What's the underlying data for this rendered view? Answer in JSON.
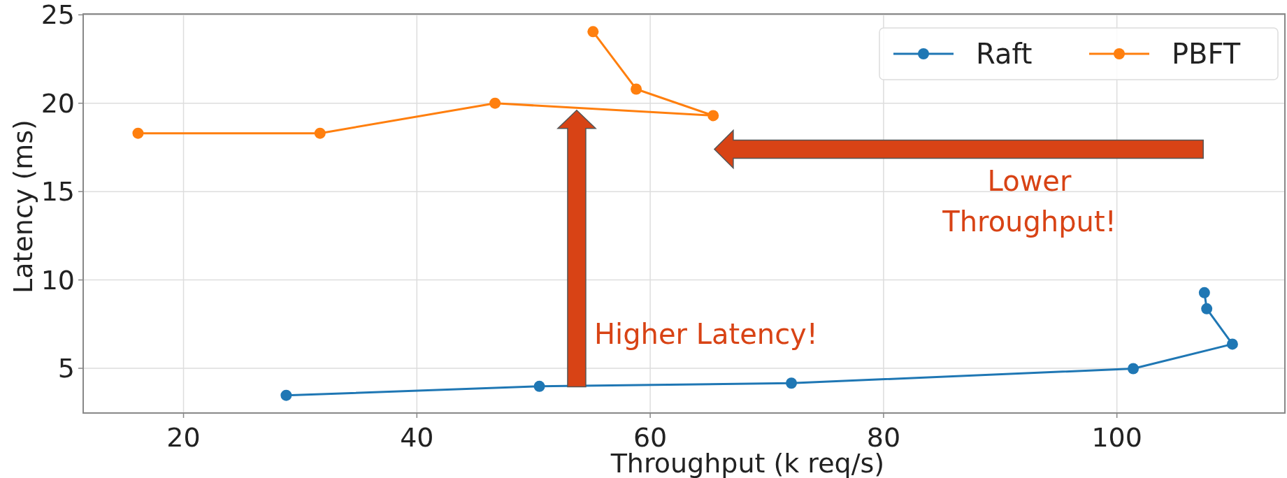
{
  "chart_data": {
    "type": "line",
    "xlabel": "Throughput (k req/s)",
    "ylabel": "Latency (ms)",
    "xlim": [
      11.4,
      114.4
    ],
    "ylim": [
      2.47,
      25.05
    ],
    "xticks": [
      20,
      40,
      60,
      80,
      100
    ],
    "yticks": [
      5,
      10,
      15,
      20,
      25
    ],
    "grid": true,
    "legend": "top right",
    "marker": "circle",
    "line_style": "solid",
    "series": [
      {
        "name": "Raft",
        "color": "#1f77b4",
        "x": [
          28.8,
          50.5,
          72.1,
          101.4,
          109.9,
          107.7,
          107.5
        ],
        "values": [
          3.47,
          3.98,
          4.16,
          4.98,
          6.37,
          8.37,
          9.28
        ]
      },
      {
        "name": "PBFT",
        "color": "#ff7f0e",
        "x": [
          16.1,
          31.7,
          46.7,
          65.4,
          58.8,
          55.1
        ],
        "values": [
          18.3,
          18.3,
          20.0,
          19.3,
          20.8,
          24.05
        ]
      }
    ],
    "annotations": [
      "Higher Latency!",
      "Lower\nThroughput!"
    ]
  }
}
